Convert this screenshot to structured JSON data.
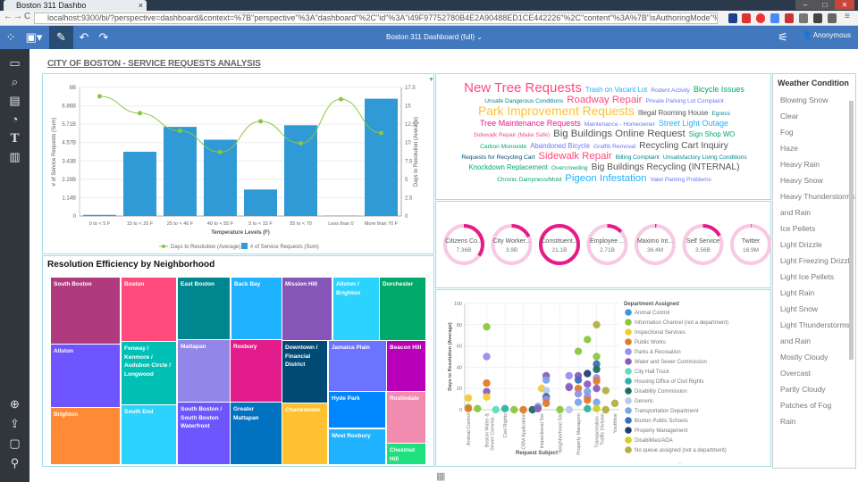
{
  "browser": {
    "tab_title": "Boston 311 Dashbo",
    "url": "localhost:9300/bi/?perspective=dashboard&context=%7B\"perspective\"%3A\"dashboard\"%2C\"id\"%3A\"i49F97752780B4E2A90488ED1CE442226\"%2C\"content\"%3A%7B\"isAuthoringMode\"%3Atrue%2C\"id\"%3A\"iD938"
  },
  "appbar": {
    "dashboard_name": "Boston 311 Dashboard (full)",
    "user": "Anonymous"
  },
  "page_title": "CITY OF BOSTON - SERVICE REQUESTS ANALYSIS",
  "colors": {
    "appbar": "#4178be",
    "sidebar": "#30363c",
    "bar": "#2f9ad6",
    "line": "#8cc63f",
    "donut": "#e8198b",
    "donut_track": "#f9c8e3"
  },
  "chart_data": [
    {
      "type": "bar+line",
      "xlabel": "Temperature Levels (F)",
      "ylabel": "# of Service Requests (Sum)",
      "y2label": "Days to Resolution (Average)",
      "categories": [
        "0 to < 5 F",
        "15 to < 25 F",
        "25 to < 40 F",
        "40 to < 55 F",
        "5 to < 15 F",
        "55 to < 70",
        "Less than 0",
        "More than 70 F"
      ],
      "yticks": [
        "0",
        "1.14B",
        "2.29B",
        "3.43B",
        "4.57B",
        "5.71B",
        "6.86B",
        "8B"
      ],
      "ylim": [
        0,
        8
      ],
      "y2ticks": [
        "0",
        "2.5",
        "5",
        "7.5",
        "10",
        "12.5",
        "15",
        "17.5"
      ],
      "y2lim": [
        0,
        17.5
      ],
      "series": [
        {
          "name": "# of Service Requests (Sum)",
          "type": "bar",
          "unit": "B",
          "values": [
            0.07,
            4.0,
            5.55,
            4.75,
            1.65,
            5.65,
            0.02,
            7.3
          ]
        },
        {
          "name": "Days to Resolution (Average)",
          "type": "line",
          "values": [
            16.3,
            14.0,
            11.6,
            8.7,
            12.9,
            9.9,
            15.9,
            11.3
          ]
        }
      ],
      "legend": "bottom",
      "grid": true
    },
    {
      "type": "treemap",
      "title": "Resolution Efficiency by Neighborhood",
      "tiles": [
        {
          "label": "South Boston",
          "color": "#af3a7d"
        },
        {
          "label": "Boston",
          "color": "#ff4a7c"
        },
        {
          "label": "East Boston",
          "color": "#00868e"
        },
        {
          "label": "Back Bay",
          "color": "#1fb3ff"
        },
        {
          "label": "Mission Hill",
          "color": "#8556b8"
        },
        {
          "label": "Allston / Brighton",
          "color": "#2bd4ff"
        },
        {
          "label": "Dorchester",
          "color": "#00a86a"
        },
        {
          "label": "Allston",
          "color": "#6e55ff"
        },
        {
          "label": "Fenway / Kenmore / Audubon Circle / Longwood",
          "color": "#00c0b5"
        },
        {
          "label": "Mattapan",
          "color": "#9485e8"
        },
        {
          "label": "Roxbury",
          "color": "#e31c8b"
        },
        {
          "label": "Downtown / Financial District",
          "color": "#004a75"
        },
        {
          "label": "Jamaica Plain",
          "color": "#6b73ff"
        },
        {
          "label": "Beacon Hill",
          "color": "#b800b8"
        },
        {
          "label": "Brighton",
          "color": "#ff8a36"
        },
        {
          "label": "South End",
          "color": "#2bd4ff"
        },
        {
          "label": "South Boston / South Boston Waterfront",
          "color": "#6e55ff"
        },
        {
          "label": "Greater Mattapan",
          "color": "#0072c0"
        },
        {
          "label": "Charlestown",
          "color": "#ffc12f"
        },
        {
          "label": "Hyde Park",
          "color": "#0087ff"
        },
        {
          "label": "West Roxbury",
          "color": "#1fb3ff"
        },
        {
          "label": "Roslindale",
          "color": "#f28bb0"
        },
        {
          "label": "Chestnut Hill",
          "color": "#1ee07f"
        }
      ]
    },
    {
      "type": "wordcloud",
      "words": [
        {
          "text": "New Tree Requests",
          "weight": 10,
          "color": "#ff4a7c"
        },
        {
          "text": "Park Improvement Requests",
          "weight": 9,
          "color": "#ffc12f"
        },
        {
          "text": "Big Buildings Online Request",
          "weight": 7,
          "color": "#555"
        },
        {
          "text": "Sidewalk Repair",
          "weight": 7,
          "color": "#ff4a7c"
        },
        {
          "text": "Pigeon Infestation",
          "weight": 7,
          "color": "#1fb3ff"
        },
        {
          "text": "Roadway Repair",
          "weight": 7,
          "color": "#ff4a7c"
        },
        {
          "text": "Street Light Outage",
          "weight": 5,
          "color": "#1fb3ff"
        },
        {
          "text": "Recycling Cart Inquiry",
          "weight": 6,
          "color": "#555"
        },
        {
          "text": "Big Buildings Recycling (INTERNAL)",
          "weight": 6,
          "color": "#555"
        },
        {
          "text": "Bicycle Issues",
          "weight": 5,
          "color": "#00a86a"
        },
        {
          "text": "Tree Maintenance Requests",
          "weight": 5,
          "color": "#e31c8b"
        },
        {
          "text": "Abandoned Bicycle",
          "weight": 4,
          "color": "#6b73ff"
        },
        {
          "text": "Knockdown Replacement",
          "weight": 4,
          "color": "#00a86a"
        },
        {
          "text": "Trash on Vacant Lot",
          "weight": 4,
          "color": "#1fb3ff"
        },
        {
          "text": "Illegal Rooming House",
          "weight": 4,
          "color": "#555"
        },
        {
          "text": "Sign Shop WO",
          "weight": 4,
          "color": "#00a86a"
        },
        {
          "text": "Billing Complaint",
          "weight": 3,
          "color": "#00868e"
        },
        {
          "text": "Valet Parking Problems",
          "weight": 3,
          "color": "#6b73ff"
        },
        {
          "text": "Private Parking Lot Complaint",
          "weight": 3,
          "color": "#6b73ff"
        },
        {
          "text": "Sidewalk Repair (Make Safe)",
          "weight": 3,
          "color": "#ff4a7c"
        },
        {
          "text": "Requests for Recycling Cart",
          "weight": 3,
          "color": "#004a75"
        },
        {
          "text": "Chronic Dampness/Mold",
          "weight": 3,
          "color": "#00a86a"
        },
        {
          "text": "Unsafe Dangerous Conditions",
          "weight": 3,
          "color": "#00868e"
        },
        {
          "text": "Maintenance - Homeowner",
          "weight": 3,
          "color": "#6b73ff"
        },
        {
          "text": "Graffiti Removal",
          "weight": 3,
          "color": "#6b73ff"
        },
        {
          "text": "Overcrowding",
          "weight": 3,
          "color": "#00a86a"
        },
        {
          "text": "Rodent Activity",
          "weight": 3,
          "color": "#6b73ff"
        },
        {
          "text": "Egress",
          "weight": 3,
          "color": "#00868e"
        },
        {
          "text": "Carbon Monoxide",
          "weight": 3,
          "color": "#00a86a"
        },
        {
          "text": "Unsatisfactory Living Conditions",
          "weight": 3,
          "color": "#00868e"
        }
      ]
    },
    {
      "type": "donut",
      "items": [
        {
          "label": "Citizens Co...",
          "value": "7.36B",
          "fraction": 0.35
        },
        {
          "label": "City Worker...",
          "value": "3.9B",
          "fraction": 0.18
        },
        {
          "label": "Constituent...",
          "value": "21.1B",
          "fraction": 1.0
        },
        {
          "label": "Employee ...",
          "value": "2.71B",
          "fraction": 0.13
        },
        {
          "label": "Maximo Int...",
          "value": "36.4M",
          "fraction": 0.01
        },
        {
          "label": "Self Service",
          "value": "3.56B",
          "fraction": 0.17
        },
        {
          "label": "Twitter",
          "value": "16.9M",
          "fraction": 0.005
        }
      ]
    },
    {
      "type": "scatter",
      "xlabel": "Request Subject",
      "ylabel": "Days to Resolution (Average)",
      "ylim": [
        0,
        100
      ],
      "yticks": [
        "0",
        "20",
        "40",
        "60",
        "80",
        "100"
      ],
      "categories": [
        "Animal Control",
        "Boston Water & Sewer Commis...",
        "Civil Rights",
        "CRM Application",
        "Inspectional Services",
        "Neighborhood Services",
        "Property Management",
        "Transportation - Traffic Division",
        "Youthline"
      ],
      "legend_title": "Department Assigned",
      "legend_more": "...",
      "legend": [
        {
          "name": "Animal Control",
          "color": "#3a9ad9"
        },
        {
          "name": "Information Channel (not a department)",
          "color": "#8cc63f"
        },
        {
          "name": "Inspectional Services",
          "color": "#f5cc2e"
        },
        {
          "name": "Public Works",
          "color": "#e07b28"
        },
        {
          "name": "Parks & Recreation",
          "color": "#9b8cf0"
        },
        {
          "name": "Water and Sewer Commission",
          "color": "#8e5cbf"
        },
        {
          "name": "City Hall Truck",
          "color": "#5fdcc0"
        },
        {
          "name": "Housing Office of Civil Rights",
          "color": "#2bb3a8"
        },
        {
          "name": "Disability Commission",
          "color": "#1e6b5f"
        },
        {
          "name": "Generic",
          "color": "#b8c8f0"
        },
        {
          "name": "Transportation Department",
          "color": "#78a8e8"
        },
        {
          "name": "Boston Public Schools",
          "color": "#3a6fc0"
        },
        {
          "name": "Property Management",
          "color": "#1f3f6e"
        },
        {
          "name": "Disabilities/ADA",
          "color": "#d0d020"
        },
        {
          "name": "No queue assigned (not a department)",
          "color": "#b0b040"
        }
      ],
      "points": [
        [
          0,
          11,
          2
        ],
        [
          0,
          2,
          1
        ],
        [
          0,
          1,
          3
        ],
        [
          0.5,
          1,
          1
        ],
        [
          1,
          78,
          1
        ],
        [
          1,
          50,
          4
        ],
        [
          1,
          25,
          3
        ],
        [
          1,
          17,
          5
        ],
        [
          1,
          12,
          2
        ],
        [
          1.5,
          0,
          6
        ],
        [
          2,
          1,
          7
        ],
        [
          2.5,
          0,
          1
        ],
        [
          3,
          0,
          3
        ],
        [
          3.5,
          0,
          8
        ],
        [
          4,
          20,
          2
        ],
        [
          3.8,
          3,
          10
        ],
        [
          3.8,
          1,
          5
        ],
        [
          4.25,
          32,
          5
        ],
        [
          4.25,
          28,
          10
        ],
        [
          4.25,
          18,
          9
        ],
        [
          4.25,
          12,
          8
        ],
        [
          4.25,
          10,
          4
        ],
        [
          4.25,
          6,
          3
        ],
        [
          5,
          0,
          1
        ],
        [
          5.5,
          0,
          9
        ],
        [
          5.5,
          32,
          4
        ],
        [
          5.5,
          22,
          10
        ],
        [
          5.5,
          21,
          5
        ],
        [
          6,
          55,
          1
        ],
        [
          6,
          32,
          5
        ],
        [
          6,
          28,
          11
        ],
        [
          6,
          20,
          3
        ],
        [
          6,
          15,
          4
        ],
        [
          6,
          7,
          10
        ],
        [
          6.5,
          66,
          1
        ],
        [
          6.5,
          34,
          12
        ],
        [
          6.5,
          24,
          5
        ],
        [
          6.5,
          17,
          10
        ],
        [
          6.5,
          12,
          4
        ],
        [
          6.5,
          9,
          3
        ],
        [
          6.5,
          1,
          7
        ],
        [
          7,
          80,
          14
        ],
        [
          7,
          50,
          1
        ],
        [
          7,
          43,
          11
        ],
        [
          7,
          38,
          8
        ],
        [
          7,
          30,
          4
        ],
        [
          7,
          27,
          3
        ],
        [
          7,
          20,
          5
        ],
        [
          7,
          7,
          10
        ],
        [
          7,
          1,
          13
        ],
        [
          7.5,
          18,
          14
        ],
        [
          7.5,
          0,
          14
        ],
        [
          8,
          6,
          14
        ]
      ]
    }
  ],
  "weather": {
    "title": "Weather Condition",
    "items": [
      "Blowing Snow",
      "Clear",
      "Fog",
      "Haze",
      "Heavy Rain",
      "Heavy Snow",
      "Heavy Thunderstorms and Rain",
      "Ice Pellets",
      "Light Drizzle",
      "Light Freezing Drizzle",
      "Light Ice Pellets",
      "Light Rain",
      "Light Snow",
      "Light Thunderstorms and Rain",
      "Mostly Cloudy",
      "Overcast",
      "Partly Cloudy",
      "Patches of Fog",
      "Rain"
    ]
  }
}
